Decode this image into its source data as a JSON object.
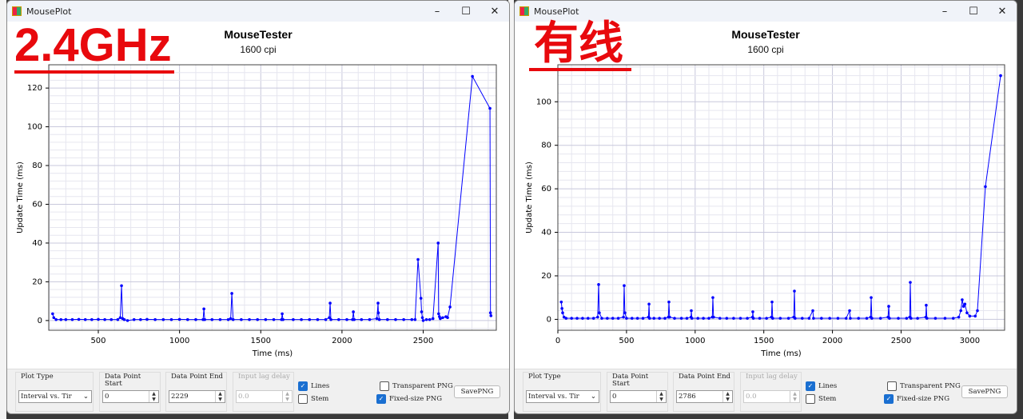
{
  "windows": [
    {
      "title": "MouseTester",
      "window_title": "MousePlot",
      "subtitle": "1600 cpi",
      "overlay_label": "2.4GHz",
      "controls": {
        "plot_type_label": "Plot Type",
        "plot_type_value": "Interval vs. Tir",
        "start_label": "Data Point Start",
        "start_value": "0",
        "end_label": "Data Point End",
        "end_value": "2229",
        "lag_label": "Input lag delay",
        "lag_value": "0.0",
        "lines_label": "Lines",
        "lines_checked": true,
        "stem_label": "Stem",
        "stem_checked": false,
        "transparent_label": "Transparent PNG",
        "transparent_checked": false,
        "fixed_label": "Fixed-size PNG",
        "fixed_checked": true,
        "save_label": "SavePNG"
      },
      "chart_data": {
        "type": "line",
        "xlabel": "Time (ms)",
        "ylabel": "Update Time (ms)",
        "xlim": [
          195,
          2950
        ],
        "ylim": [
          -5,
          132
        ],
        "xticks": [
          500,
          1000,
          1500,
          2000,
          2500
        ],
        "yticks": [
          0,
          20,
          40,
          60,
          80,
          100,
          120
        ],
        "grid": true,
        "color": "#0000ff",
        "points": [
          [
            219,
            3.5
          ],
          [
            226,
            1.5
          ],
          [
            240,
            0.5
          ],
          [
            270,
            0.5
          ],
          [
            300,
            0.5
          ],
          [
            340,
            0.5
          ],
          [
            380,
            0.6
          ],
          [
            420,
            0.5
          ],
          [
            460,
            0.5
          ],
          [
            500,
            0.6
          ],
          [
            540,
            0.5
          ],
          [
            580,
            0.5
          ],
          [
            620,
            0.5
          ],
          [
            635,
            1.5
          ],
          [
            643,
            18
          ],
          [
            650,
            1
          ],
          [
            660,
            0.5
          ],
          [
            680,
            0
          ],
          [
            720,
            0.5
          ],
          [
            760,
            0.5
          ],
          [
            800,
            0.6
          ],
          [
            850,
            0.5
          ],
          [
            900,
            0.5
          ],
          [
            950,
            0.5
          ],
          [
            1000,
            0.6
          ],
          [
            1050,
            0.5
          ],
          [
            1100,
            0.5
          ],
          [
            1145,
            0.5
          ],
          [
            1150,
            6
          ],
          [
            1155,
            0.5
          ],
          [
            1200,
            0.5
          ],
          [
            1250,
            0.5
          ],
          [
            1300,
            0.5
          ],
          [
            1315,
            1
          ],
          [
            1322,
            14
          ],
          [
            1330,
            0.5
          ],
          [
            1380,
            0.5
          ],
          [
            1430,
            0.5
          ],
          [
            1480,
            0.5
          ],
          [
            1530,
            0.5
          ],
          [
            1580,
            0.5
          ],
          [
            1628,
            0.5
          ],
          [
            1632,
            3.5
          ],
          [
            1637,
            0.5
          ],
          [
            1700,
            0.5
          ],
          [
            1750,
            0.5
          ],
          [
            1800,
            0.5
          ],
          [
            1850,
            0.5
          ],
          [
            1900,
            0.5
          ],
          [
            1922,
            1.5
          ],
          [
            1927,
            9
          ],
          [
            1932,
            0.5
          ],
          [
            1980,
            0.5
          ],
          [
            2030,
            0.5
          ],
          [
            2065,
            0.5
          ],
          [
            2070,
            4.5
          ],
          [
            2075,
            0.5
          ],
          [
            2120,
            0.5
          ],
          [
            2170,
            0.5
          ],
          [
            2215,
            1
          ],
          [
            2222,
            9
          ],
          [
            2224,
            4
          ],
          [
            2230,
            0.5
          ],
          [
            2280,
            0.5
          ],
          [
            2330,
            0.5
          ],
          [
            2380,
            0.5
          ],
          [
            2430,
            0.5
          ],
          [
            2450,
            0.5
          ],
          [
            2468,
            31.5
          ],
          [
            2486,
            11.5
          ],
          [
            2490,
            4.5
          ],
          [
            2495,
            1.5
          ],
          [
            2500,
            0
          ],
          [
            2520,
            0.5
          ],
          [
            2540,
            0.5
          ],
          [
            2560,
            1
          ],
          [
            2592,
            40
          ],
          [
            2595,
            3.5
          ],
          [
            2600,
            2
          ],
          [
            2605,
            1
          ],
          [
            2620,
            1.5
          ],
          [
            2640,
            2
          ],
          [
            2650,
            1.5
          ],
          [
            2665,
            7
          ],
          [
            2803,
            126
          ],
          [
            2911,
            109.5
          ],
          [
            2914,
            4
          ],
          [
            2917,
            2.5
          ]
        ]
      }
    },
    {
      "title": "MouseTester",
      "window_title": "MousePlot",
      "subtitle": "1600 cpi",
      "overlay_label": "有线",
      "controls": {
        "plot_type_label": "Plot Type",
        "plot_type_value": "Interval vs. Tir",
        "start_label": "Data Point Start",
        "start_value": "0",
        "end_label": "Data Point End",
        "end_value": "2786",
        "lag_label": "Input lag delay",
        "lag_value": "0.0",
        "lines_label": "Lines",
        "lines_checked": true,
        "stem_label": "Stem",
        "stem_checked": false,
        "transparent_label": "Transparent PNG",
        "transparent_checked": false,
        "fixed_label": "Fixed-size PNG",
        "fixed_checked": true,
        "save_label": "SavePNG"
      },
      "chart_data": {
        "type": "line",
        "xlabel": "Time (ms)",
        "ylabel": "Update Time (ms)",
        "xlim": [
          0,
          3254
        ],
        "ylim": [
          -5,
          117
        ],
        "xticks": [
          0,
          500,
          1000,
          1500,
          2000,
          2500,
          3000
        ],
        "yticks": [
          0,
          20,
          40,
          60,
          80,
          100
        ],
        "grid": true,
        "color": "#0000ff",
        "points": [
          [
            25,
            8
          ],
          [
            30,
            5
          ],
          [
            35,
            3
          ],
          [
            45,
            1
          ],
          [
            60,
            0.5
          ],
          [
            100,
            0.5
          ],
          [
            140,
            0.5
          ],
          [
            180,
            0.5
          ],
          [
            220,
            0.5
          ],
          [
            260,
            0.5
          ],
          [
            290,
            1
          ],
          [
            297,
            16
          ],
          [
            302,
            3
          ],
          [
            320,
            0.5
          ],
          [
            360,
            0.5
          ],
          [
            400,
            0.5
          ],
          [
            440,
            0.5
          ],
          [
            478,
            1
          ],
          [
            483,
            15.5
          ],
          [
            488,
            3
          ],
          [
            500,
            0.5
          ],
          [
            540,
            0.5
          ],
          [
            580,
            0.5
          ],
          [
            620,
            0.5
          ],
          [
            660,
            1
          ],
          [
            664,
            7
          ],
          [
            668,
            0.5
          ],
          [
            700,
            0.5
          ],
          [
            740,
            0.5
          ],
          [
            780,
            0.5
          ],
          [
            805,
            1
          ],
          [
            809,
            8
          ],
          [
            814,
            1
          ],
          [
            850,
            0.5
          ],
          [
            900,
            0.5
          ],
          [
            940,
            0.5
          ],
          [
            970,
            1
          ],
          [
            972,
            4
          ],
          [
            976,
            0.5
          ],
          [
            1020,
            0.5
          ],
          [
            1060,
            0.5
          ],
          [
            1100,
            0.5
          ],
          [
            1125,
            1
          ],
          [
            1129,
            10
          ],
          [
            1134,
            1
          ],
          [
            1180,
            0.5
          ],
          [
            1230,
            0.5
          ],
          [
            1280,
            0.5
          ],
          [
            1330,
            0.5
          ],
          [
            1380,
            0.5
          ],
          [
            1418,
            1
          ],
          [
            1420,
            3.5
          ],
          [
            1424,
            0.5
          ],
          [
            1470,
            0.5
          ],
          [
            1520,
            0.5
          ],
          [
            1556,
            1
          ],
          [
            1560,
            8
          ],
          [
            1565,
            0.5
          ],
          [
            1620,
            0.5
          ],
          [
            1680,
            0.5
          ],
          [
            1718,
            1
          ],
          [
            1723,
            13
          ],
          [
            1728,
            0.5
          ],
          [
            1780,
            0.5
          ],
          [
            1830,
            0.5
          ],
          [
            1857,
            4
          ],
          [
            1862,
            0.5
          ],
          [
            1920,
            0.5
          ],
          [
            1980,
            0.5
          ],
          [
            2040,
            0.5
          ],
          [
            2100,
            0.5
          ],
          [
            2125,
            4
          ],
          [
            2130,
            0.5
          ],
          [
            2190,
            0.5
          ],
          [
            2250,
            0.5
          ],
          [
            2278,
            1
          ],
          [
            2282,
            10
          ],
          [
            2287,
            0.5
          ],
          [
            2350,
            0.5
          ],
          [
            2405,
            1
          ],
          [
            2410,
            6
          ],
          [
            2415,
            0.5
          ],
          [
            2480,
            0.5
          ],
          [
            2540,
            0.5
          ],
          [
            2563,
            1
          ],
          [
            2567,
            17
          ],
          [
            2572,
            0.5
          ],
          [
            2620,
            0.5
          ],
          [
            2680,
            1
          ],
          [
            2683,
            6.5
          ],
          [
            2688,
            0.5
          ],
          [
            2750,
            0.5
          ],
          [
            2820,
            0.5
          ],
          [
            2880,
            0.5
          ],
          [
            2920,
            1
          ],
          [
            2935,
            4
          ],
          [
            2945,
            9
          ],
          [
            2955,
            6
          ],
          [
            2965,
            7
          ],
          [
            2980,
            3
          ],
          [
            3000,
            1.5
          ],
          [
            3040,
            1.5
          ],
          [
            3056,
            4
          ],
          [
            3114,
            61
          ],
          [
            3225,
            112
          ]
        ]
      }
    }
  ]
}
